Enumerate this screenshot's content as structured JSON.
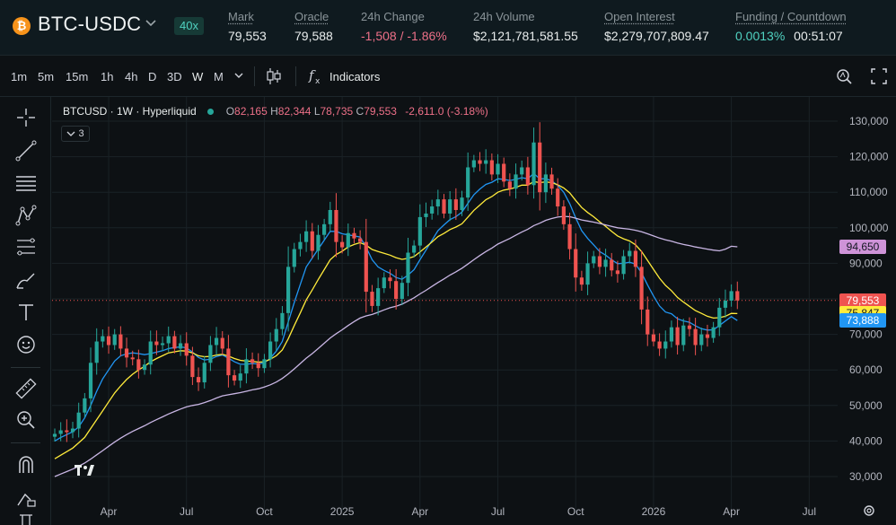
{
  "header": {
    "coin_icon": "₿",
    "pair": "BTC-USDC",
    "leverage": "40x",
    "stats": [
      {
        "label": "Mark",
        "value": "79,553"
      },
      {
        "label": "Oracle",
        "value": "79,588"
      },
      {
        "label": "24h Change",
        "value": "-1,508 / -1.86%"
      },
      {
        "label": "24h Volume",
        "value": "$2,121,781,581.55"
      },
      {
        "label": "Open Interest",
        "value": "$2,279,707,809.47"
      },
      {
        "label": "Funding / Countdown",
        "value_rate": "0.0013%",
        "value_countdown": "00:51:07"
      }
    ]
  },
  "toolbar": {
    "timeframes": [
      "1m",
      "5m",
      "15m",
      "1h",
      "4h",
      "D",
      "3D",
      "W",
      "M"
    ],
    "active_timeframe": "W",
    "indicators_label": "Indicators"
  },
  "legend": {
    "symbol": "BTCUSD · 1W · Hyperliquid",
    "o_label": "O",
    "o": "82,165",
    "h_label": "H",
    "h": "82,344",
    "l_label": "L",
    "l": "78,735",
    "c_label": "C",
    "c": "79,553",
    "change": "-2,611.0 (-3.18%)",
    "collapsed_count": "3"
  },
  "chart_data": {
    "type": "candlestick",
    "title": "BTCUSD · 1W · Hyperliquid",
    "ylim": [
      25000,
      135000
    ],
    "y_ticks": [
      30000,
      40000,
      50000,
      60000,
      70000,
      80000,
      90000,
      100000,
      110000,
      120000,
      130000
    ],
    "y_tick_labels": [
      "30,000",
      "40,000",
      "50,000",
      "60,000",
      "70,000",
      "80,000",
      "90,000",
      "100,000",
      "110,000",
      "120,000",
      "130,000"
    ],
    "x_ticks": [
      {
        "label": "Apr",
        "week": 9
      },
      {
        "label": "Jul",
        "week": 22
      },
      {
        "label": "Oct",
        "week": 35
      },
      {
        "label": "2025",
        "week": 48
      },
      {
        "label": "Apr",
        "week": 61
      },
      {
        "label": "Jul",
        "week": 74
      },
      {
        "label": "Oct",
        "week": 87
      },
      {
        "label": "2026",
        "week": 100
      },
      {
        "label": "Apr",
        "week": 113
      },
      {
        "label": "Jul",
        "week": 126
      }
    ],
    "x_range_weeks": [
      0,
      130
    ],
    "closes": [
      42000,
      43000,
      42500,
      43500,
      48000,
      52000,
      62000,
      68000,
      69500,
      67000,
      70000,
      66000,
      63500,
      63000,
      60000,
      61500,
      68000,
      67000,
      67500,
      69500,
      66000,
      67500,
      64000,
      58000,
      56500,
      62000,
      67000,
      69000,
      66000,
      58500,
      57000,
      59000,
      63000,
      62000,
      60500,
      63000,
      68000,
      71500,
      76000,
      89000,
      94000,
      96000,
      99000,
      93500,
      98000,
      101000,
      105000,
      96000,
      94500,
      98500,
      97000,
      96000,
      82000,
      78000,
      83000,
      86000,
      85000,
      80000,
      84500,
      93000,
      95000,
      103000,
      104000,
      106000,
      108000,
      104000,
      108000,
      105000,
      108500,
      117000,
      119000,
      118000,
      119000,
      115000,
      118000,
      113000,
      111000,
      115000,
      117000,
      112000,
      124000,
      110000,
      115000,
      111000,
      106000,
      101000,
      94000,
      86000,
      84000,
      90000,
      92000,
      89000,
      91000,
      88000,
      87000,
      92000,
      93500,
      89000,
      77000,
      70000,
      68000,
      66000,
      68000,
      72000,
      67000,
      72500,
      71500,
      67000,
      70000,
      69000,
      72000,
      77500,
      79500,
      82165,
      79553
    ],
    "series": [
      {
        "name": "",
        "color": "#2196f3",
        "values": [
          40000,
          41000,
          41800,
          42600,
          44000,
          46500,
          50000,
          54000,
          57500,
          60000,
          62500,
          64000,
          64500,
          64800,
          64600,
          64300,
          64600,
          65000,
          65400,
          66000,
          66300,
          66500,
          66200,
          65000,
          63500,
          62800,
          63000,
          63800,
          64200,
          63300,
          62300,
          61600,
          61600,
          61800,
          61700,
          62000,
          63300,
          65300,
          68000,
          73500,
          79000,
          84000,
          89000,
          91500,
          94000,
          96500,
          99000,
          99000,
          98300,
          98000,
          97700,
          97400,
          94500,
          91000,
          89000,
          88000,
          87200,
          86000,
          85500,
          86700,
          88200,
          91000,
          93700,
          96500,
          99200,
          100800,
          102300,
          103100,
          104400,
          106900,
          109300,
          110900,
          112200,
          112800,
          113800,
          113600,
          113300,
          113600,
          114100,
          113800,
          115300,
          113800,
          113800,
          113200,
          111900,
          110000,
          106800,
          102800,
          99200,
          97000,
          95200,
          93300,
          92300,
          91000,
          89900,
          90000,
          90300,
          89800,
          87300,
          83900,
          80800,
          78000,
          76300,
          75800,
          74400,
          73800,
          73400,
          72400,
          71600,
          71200,
          71300,
          72500,
          73800,
          75000,
          73888
        ]
      },
      {
        "name": "",
        "color": "#ffeb3b",
        "values": [
          35000,
          36000,
          37000,
          38000,
          39500,
          41000,
          43500,
          46000,
          48500,
          51000,
          53500,
          55500,
          57300,
          58800,
          60000,
          61000,
          62300,
          63200,
          64000,
          64800,
          65100,
          65400,
          65300,
          64800,
          64000,
          63700,
          63800,
          64200,
          64400,
          63900,
          63200,
          62700,
          62500,
          62400,
          62200,
          62300,
          63000,
          64000,
          65600,
          68800,
          72500,
          76000,
          79700,
          82500,
          85400,
          88200,
          91000,
          92500,
          93400,
          94600,
          95300,
          95800,
          95100,
          93900,
          93300,
          92800,
          92300,
          91600,
          91100,
          91400,
          91900,
          93200,
          94600,
          96000,
          97500,
          98400,
          99500,
          100200,
          101100,
          103000,
          104900,
          106400,
          107900,
          108800,
          110000,
          110600,
          110900,
          111400,
          112000,
          112000,
          113000,
          112700,
          112900,
          112700,
          112100,
          111200,
          109800,
          107700,
          105700,
          104300,
          103100,
          101700,
          100400,
          99000,
          97700,
          96900,
          96300,
          95200,
          93300,
          90800,
          88300,
          85800,
          83800,
          82300,
          80400,
          79100,
          77900,
          76700,
          75900,
          75100,
          74600,
          74700,
          75100,
          75900,
          75847
        ]
      },
      {
        "name": "",
        "color": "#c9b6e4",
        "values": [
          30000,
          30700,
          31400,
          32100,
          32900,
          33800,
          34900,
          36100,
          37300,
          38500,
          39700,
          40800,
          41800,
          42700,
          43500,
          44300,
          45200,
          46000,
          46800,
          47600,
          48300,
          49000,
          49600,
          50000,
          50300,
          50800,
          51400,
          52100,
          52700,
          53000,
          53300,
          53600,
          54000,
          54400,
          54700,
          55200,
          55800,
          56600,
          57600,
          58900,
          60300,
          61800,
          63300,
          64600,
          66000,
          67500,
          69000,
          70200,
          71300,
          72500,
          73600,
          74600,
          75200,
          75600,
          76200,
          76900,
          77500,
          77900,
          78500,
          79400,
          80300,
          81400,
          82400,
          83500,
          84600,
          85600,
          86700,
          87600,
          88600,
          89800,
          91000,
          92200,
          93300,
          94300,
          95400,
          96200,
          97000,
          97900,
          98800,
          99600,
          100600,
          101300,
          102100,
          102600,
          103000,
          103200,
          103100,
          102700,
          102200,
          101900,
          101600,
          101200,
          100800,
          100400,
          100000,
          99800,
          99600,
          99300,
          98900,
          98300,
          97700,
          97100,
          96600,
          96200,
          95700,
          95300,
          95000,
          94600,
          94300,
          94000,
          93700,
          93500,
          94000,
          94800,
          94650
        ]
      }
    ],
    "last_price": {
      "label": "79,553",
      "value": 79553
    },
    "price_tags": [
      {
        "label": "94,650",
        "value": 94650,
        "bg": "#ce93d8",
        "fg": "#131722"
      },
      {
        "label": "79,553",
        "value": 79553,
        "bg": "#ef5350",
        "fg": "#ffffff"
      },
      {
        "label": "75,847",
        "value": 75847,
        "bg": "#ffeb3b",
        "fg": "#131722"
      },
      {
        "label": "73,888",
        "value": 73888,
        "bg": "#2196f3",
        "fg": "#ffffff"
      }
    ],
    "colors": {
      "up": "#26a69a",
      "down": "#ef5350",
      "bg": "#0d1114",
      "grid": "#1a2226"
    }
  }
}
